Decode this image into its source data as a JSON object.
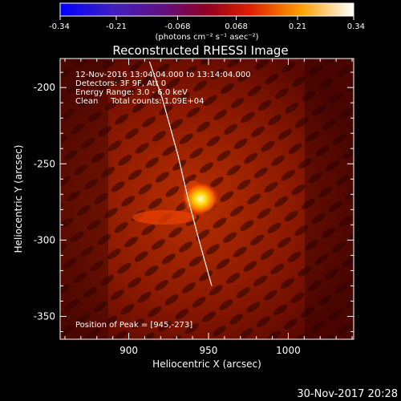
{
  "chart_data": {
    "type": "heatmap",
    "title": "Reconstructed RHESSI Image",
    "colorbar": {
      "ticks": [
        "-0.34",
        "-0.21",
        "-0.068",
        "0.068",
        "0.21",
        "0.34"
      ],
      "tick_values": [
        -0.34,
        -0.21,
        -0.068,
        0.068,
        0.21,
        0.34
      ],
      "range": [
        -0.34,
        0.34
      ],
      "label": "(photons cm⁻² s⁻¹ asec⁻²)",
      "colormap": "blue-purple-red-yellow-white"
    },
    "xlabel": "Heliocentric X (arcsec)",
    "ylabel": "Heliocentric Y (arcsec)",
    "x_ticks": [
      900,
      950,
      1000
    ],
    "y_ticks": [
      -200,
      -250,
      -300,
      -350
    ],
    "xlim": [
      857,
      1041
    ],
    "ylim": [
      -365,
      -181
    ],
    "info_lines": [
      "12-Nov-2016 13:04:04.000 to 13:14:04.000",
      "Detectors: 3F 9F, Att 0",
      "Energy Range: 3.0 - 6.0 keV",
      "Clean     Total counts: 1.09E+04"
    ],
    "peak_label": "Position of Peak = [945,-273]",
    "peak": [
      945,
      -273
    ],
    "limb_curve": [
      [
        913,
        -183
      ],
      [
        921,
        -207
      ],
      [
        931,
        -245
      ],
      [
        937,
        -272
      ],
      [
        944,
        -300
      ],
      [
        952,
        -330
      ]
    ],
    "timestamp": "30-Nov-2017 20:28",
    "colors": {
      "background": "#000000",
      "limb": "#ffffff",
      "source_core": "#ffff80",
      "source_field": "#b02000"
    }
  }
}
